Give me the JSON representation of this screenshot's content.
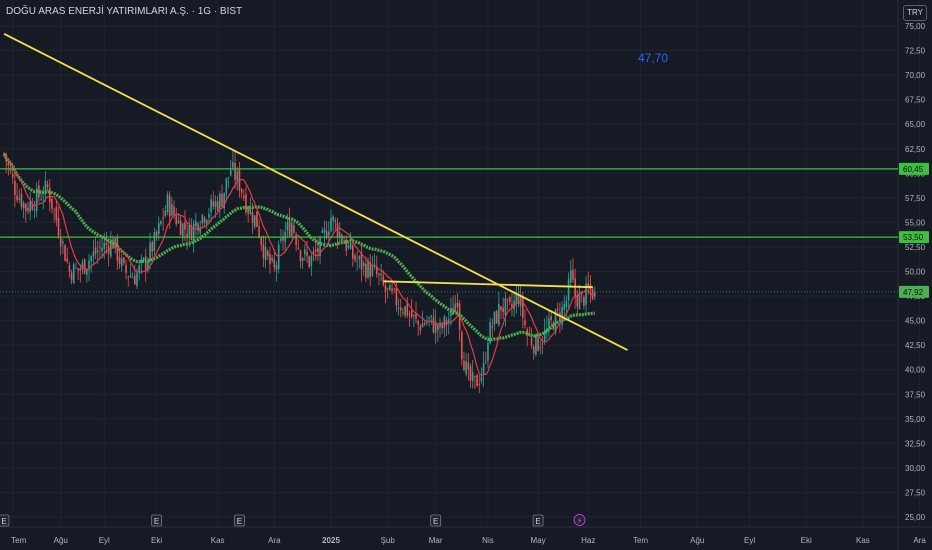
{
  "header": {
    "title": "DOĞU ARAS ENERJİ YATIRIMLARI A.Ş. · 1G · BIST"
  },
  "currency": "TRY",
  "annotation": "47,70",
  "colors": {
    "background": "#161a25",
    "grid": "#1f2430",
    "up": "#26a69a",
    "down": "#ef5350",
    "trendline": "#f5e04a",
    "level_line": "#3fbf3f",
    "ma_fast": "#e63946",
    "ma_slow": "#4caf50",
    "axis_text": "#b2b5be",
    "last_price_label": "#4caf50"
  },
  "chart_data": {
    "type": "candlestick",
    "y_scale": {
      "min": 23.0,
      "max": 76.0
    },
    "y_ticks": [
      "75,00",
      "72,50",
      "70,00",
      "67,50",
      "65,00",
      "62,50",
      "60,00",
      "57,50",
      "55,00",
      "52,50",
      "50,00",
      "47,50",
      "45,00",
      "42,50",
      "40,00",
      "37,50",
      "35,00",
      "32,50",
      "30,00",
      "27,50",
      "25,00"
    ],
    "y_tick_values": [
      75,
      72.5,
      70,
      67.5,
      65,
      62.5,
      60,
      57.5,
      55,
      52.5,
      50,
      47.5,
      45,
      42.5,
      40,
      37.5,
      35,
      32.5,
      30,
      27.5,
      25
    ],
    "x_ticks": [
      "Tem",
      "Ağu",
      "Eyl",
      "Eki",
      "Kas",
      "Ara",
      "2025",
      "Şub",
      "Mar",
      "Nis",
      "May",
      "Haz",
      "Tem",
      "Ağu",
      "Eyl",
      "Eki",
      "Kas",
      "Ara"
    ],
    "x_tick_index": [
      4,
      26,
      46,
      70,
      98,
      124,
      150,
      176,
      198,
      222,
      245,
      268,
      292,
      318,
      342,
      368,
      394,
      420
    ],
    "candle_count": 272,
    "levels": [
      {
        "value": 60.45,
        "label": "60,45"
      },
      {
        "value": 53.5,
        "label": "53,50"
      }
    ],
    "last_price": {
      "value": 47.92,
      "label": "47,92"
    },
    "trendlines": [
      {
        "from": {
          "index": 0,
          "value": 74.2
        },
        "to": {
          "index": 286,
          "value": 42.0
        }
      },
      {
        "from": {
          "index": 174,
          "value": 49.0
        },
        "to": {
          "index": 270,
          "value": 48.4
        }
      }
    ],
    "price_path": [
      [
        0,
        62.0
      ],
      [
        5,
        58.5
      ],
      [
        10,
        56.5
      ],
      [
        15,
        57.5
      ],
      [
        20,
        58.5
      ],
      [
        25,
        54.5
      ],
      [
        30,
        50.0
      ],
      [
        35,
        50.2
      ],
      [
        40,
        51.5
      ],
      [
        45,
        52.5
      ],
      [
        50,
        53.0
      ],
      [
        55,
        50.0
      ],
      [
        60,
        49.5
      ],
      [
        65,
        51.0
      ],
      [
        70,
        53.5
      ],
      [
        75,
        57.0
      ],
      [
        80,
        55.0
      ],
      [
        85,
        54.0
      ],
      [
        90,
        55.5
      ],
      [
        95,
        56.5
      ],
      [
        100,
        57.5
      ],
      [
        104,
        60.5
      ],
      [
        108,
        59.0
      ],
      [
        112,
        56.5
      ],
      [
        116,
        55.0
      ],
      [
        120,
        51.5
      ],
      [
        124,
        50.0
      ],
      [
        128,
        53.5
      ],
      [
        132,
        55.0
      ],
      [
        136,
        52.0
      ],
      [
        140,
        51.0
      ],
      [
        145,
        52.5
      ],
      [
        150,
        55.5
      ],
      [
        155,
        53.5
      ],
      [
        160,
        51.5
      ],
      [
        165,
        50.5
      ],
      [
        170,
        50.0
      ],
      [
        175,
        48.0
      ],
      [
        180,
        47.0
      ],
      [
        185,
        46.0
      ],
      [
        190,
        44.5
      ],
      [
        195,
        45.0
      ],
      [
        200,
        44.0
      ],
      [
        205,
        45.5
      ],
      [
        208,
        47.5
      ],
      [
        210,
        42.0
      ],
      [
        213,
        39.0
      ],
      [
        216,
        38.5
      ],
      [
        220,
        40.0
      ],
      [
        222,
        43.5
      ],
      [
        225,
        45.0
      ],
      [
        228,
        46.5
      ],
      [
        232,
        46.0
      ],
      [
        236,
        47.5
      ],
      [
        240,
        43.5
      ],
      [
        244,
        42.5
      ],
      [
        248,
        43.5
      ],
      [
        252,
        45.0
      ],
      [
        256,
        46.0
      ],
      [
        258,
        47.0
      ],
      [
        260,
        49.5
      ],
      [
        262,
        47.5
      ],
      [
        265,
        47.0
      ],
      [
        268,
        48.0
      ],
      [
        270,
        47.9
      ]
    ],
    "x_event_markers": [
      {
        "index": 0,
        "label": "E"
      },
      {
        "index": 70,
        "label": "E"
      },
      {
        "index": 108,
        "label": "E"
      },
      {
        "index": 198,
        "label": "E"
      },
      {
        "index": 245,
        "label": "E"
      },
      {
        "index": 264,
        "label": "⚡"
      }
    ]
  }
}
